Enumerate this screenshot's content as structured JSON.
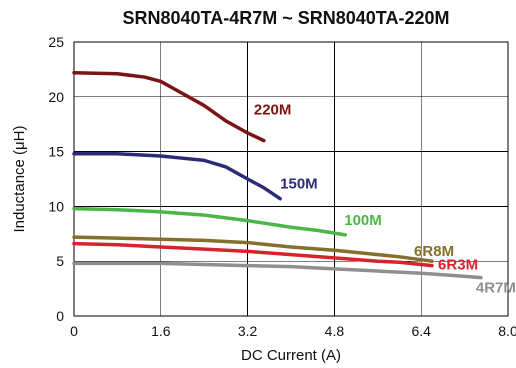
{
  "chart_data": {
    "type": "line",
    "title": "SRN8040TA-4R7M ~ SRN8040TA-220M",
    "xlabel": "DC Current (A)",
    "ylabel": "Inductance (μH)",
    "xlim": [
      0,
      8.0
    ],
    "ylim": [
      0,
      25
    ],
    "x_ticks": [
      0,
      1.6,
      3.2,
      4.8,
      6.4,
      8.0
    ],
    "x_tick_labels": [
      "0",
      "1.6",
      "3.2",
      "4.8",
      "6.4",
      "8.0"
    ],
    "y_ticks": [
      0,
      5,
      10,
      15,
      20,
      25
    ],
    "y_tick_labels": [
      "0",
      "5",
      "10",
      "15",
      "20",
      "25"
    ],
    "grid": true,
    "series": [
      {
        "name": "220M",
        "color": "#7b1414",
        "x": [
          0,
          0.8,
          1.3,
          1.6,
          2.0,
          2.4,
          2.8,
          3.2,
          3.5
        ],
        "y": [
          22.2,
          22.1,
          21.8,
          21.4,
          20.3,
          19.2,
          17.8,
          16.7,
          16.0
        ]
      },
      {
        "name": "150M",
        "color": "#2c2b78",
        "x": [
          0,
          0.8,
          1.6,
          2.0,
          2.4,
          2.8,
          3.2,
          3.5,
          3.8
        ],
        "y": [
          14.8,
          14.8,
          14.6,
          14.4,
          14.2,
          13.6,
          12.5,
          11.7,
          10.7
        ]
      },
      {
        "name": "100M",
        "color": "#4cb748",
        "x": [
          0,
          0.8,
          1.6,
          2.4,
          3.2,
          4.0,
          4.5,
          5.0
        ],
        "y": [
          9.8,
          9.7,
          9.5,
          9.2,
          8.7,
          8.1,
          7.8,
          7.4
        ]
      },
      {
        "name": "6R8M",
        "color": "#84702a",
        "x": [
          0,
          0.8,
          1.6,
          2.4,
          3.2,
          4.0,
          4.8,
          5.6,
          6.0,
          6.6
        ],
        "y": [
          7.2,
          7.1,
          7.0,
          6.9,
          6.7,
          6.3,
          6.0,
          5.6,
          5.4,
          5.0
        ]
      },
      {
        "name": "6R3M",
        "color": "#d7242c",
        "x": [
          0,
          0.8,
          1.6,
          2.4,
          3.2,
          4.0,
          4.8,
          5.6,
          6.0,
          6.6
        ],
        "y": [
          6.6,
          6.5,
          6.3,
          6.1,
          5.9,
          5.6,
          5.3,
          5.0,
          4.9,
          4.6
        ]
      },
      {
        "name": "4R7M",
        "color": "#8f8f8f",
        "x": [
          0,
          0.8,
          1.6,
          2.4,
          3.2,
          4.0,
          4.8,
          5.6,
          6.4,
          7.0,
          7.5
        ],
        "y": [
          4.8,
          4.8,
          4.8,
          4.7,
          4.6,
          4.5,
          4.3,
          4.1,
          3.9,
          3.7,
          3.5
        ]
      }
    ]
  }
}
